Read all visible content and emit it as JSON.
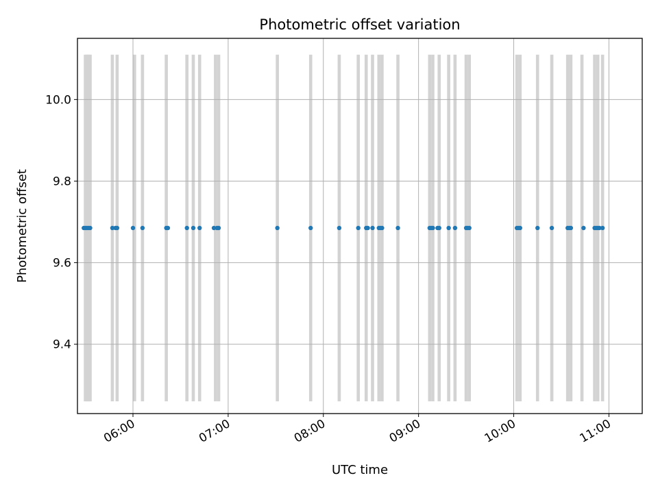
{
  "chart_data": {
    "type": "scatter",
    "title": "Photometric offset variation",
    "xlabel": "UTC time",
    "ylabel": "Photometric offset",
    "x_ticks": [
      "06:00",
      "07:00",
      "08:00",
      "09:00",
      "10:00",
      "11:00"
    ],
    "y_ticks": [
      "9.4",
      "9.6",
      "9.8",
      "10.0"
    ],
    "xlim": [
      "05:25",
      "11:21"
    ],
    "ylim": [
      9.23,
      10.15
    ],
    "grid": true,
    "colors": {
      "points": "#1f77b4",
      "bands": "#d3d3d3",
      "grid": "#b0b0b0"
    },
    "span_range": [
      9.26,
      10.11
    ],
    "bands": [
      [
        "05:29",
        "05:32"
      ],
      [
        "05:30",
        "05:33"
      ],
      [
        "05:32",
        "05:34"
      ],
      [
        "05:46",
        "05:48"
      ],
      [
        "05:49",
        "05:51"
      ],
      [
        "06:00",
        "06:02"
      ],
      [
        "06:05",
        "06:07"
      ],
      [
        "06:20",
        "06:22"
      ],
      [
        "06:33",
        "06:35"
      ],
      [
        "06:37",
        "06:39"
      ],
      [
        "06:41",
        "06:43"
      ],
      [
        "06:51",
        "06:53"
      ],
      [
        "06:53",
        "06:55"
      ],
      [
        "07:30",
        "07:32"
      ],
      [
        "07:51",
        "07:53"
      ],
      [
        "08:09",
        "08:11"
      ],
      [
        "08:21",
        "08:23"
      ],
      [
        "08:26",
        "08:28"
      ],
      [
        "08:30",
        "08:32"
      ],
      [
        "08:34",
        "08:36"
      ],
      [
        "08:36",
        "08:38"
      ],
      [
        "08:46",
        "08:48"
      ],
      [
        "09:06",
        "09:08"
      ],
      [
        "09:08",
        "09:10"
      ],
      [
        "09:12",
        "09:14"
      ],
      [
        "09:18",
        "09:20"
      ],
      [
        "09:22",
        "09:24"
      ],
      [
        "09:29",
        "09:31"
      ],
      [
        "09:31",
        "09:33"
      ],
      [
        "10:01",
        "10:03"
      ],
      [
        "10:03",
        "10:05"
      ],
      [
        "10:14",
        "10:16"
      ],
      [
        "10:23",
        "10:25"
      ],
      [
        "10:33",
        "10:35"
      ],
      [
        "10:35",
        "10:37"
      ],
      [
        "10:42",
        "10:44"
      ],
      [
        "10:50",
        "10:52"
      ],
      [
        "10:52",
        "10:54"
      ],
      [
        "10:55",
        "10:57"
      ]
    ],
    "series": [
      {
        "x": [
          "05:29",
          "05:30",
          "05:31",
          "05:32",
          "05:33",
          "05:47",
          "05:49",
          "05:50",
          "06:00",
          "06:06",
          "06:21",
          "06:22",
          "06:34",
          "06:38",
          "06:42",
          "06:51",
          "06:53",
          "06:54",
          "07:31",
          "07:52",
          "08:10",
          "08:22",
          "08:27",
          "08:28",
          "08:31",
          "08:35",
          "08:36",
          "08:37",
          "08:47",
          "09:07",
          "09:08",
          "09:09",
          "09:12",
          "09:13",
          "09:19",
          "09:23",
          "09:30",
          "09:31",
          "09:32",
          "10:02",
          "10:03",
          "10:04",
          "10:15",
          "10:24",
          "10:34",
          "10:35",
          "10:36",
          "10:44",
          "10:51",
          "10:52",
          "10:53",
          "10:54",
          "10:56"
        ],
        "y": [
          9.685,
          9.685,
          9.685,
          9.685,
          9.685,
          9.685,
          9.685,
          9.685,
          9.685,
          9.685,
          9.685,
          9.685,
          9.685,
          9.685,
          9.685,
          9.685,
          9.685,
          9.685,
          9.685,
          9.685,
          9.685,
          9.685,
          9.685,
          9.685,
          9.685,
          9.685,
          9.685,
          9.685,
          9.685,
          9.685,
          9.685,
          9.685,
          9.685,
          9.685,
          9.685,
          9.685,
          9.685,
          9.685,
          9.685,
          9.685,
          9.685,
          9.685,
          9.685,
          9.685,
          9.685,
          9.685,
          9.685,
          9.685,
          9.685,
          9.685,
          9.685,
          9.685,
          9.685
        ]
      }
    ]
  }
}
